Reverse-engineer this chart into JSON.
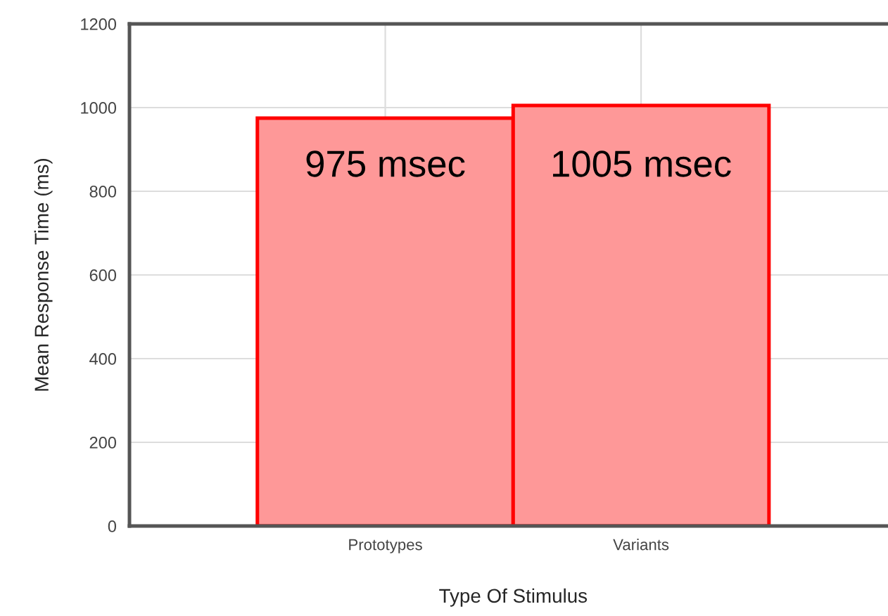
{
  "chart_data": {
    "type": "bar",
    "xlabel": "Type Of Stimulus",
    "ylabel": "Mean Response Time (ms)",
    "categories": [
      "Prototypes",
      "Variants"
    ],
    "values": [
      975,
      1005
    ],
    "value_labels": [
      "975 msec",
      "1005 msec"
    ],
    "color": "#fe9898",
    "ylim": [
      0,
      1200
    ],
    "yticks": [
      0,
      200,
      400,
      600,
      800,
      1000,
      1200
    ],
    "grid": true
  }
}
